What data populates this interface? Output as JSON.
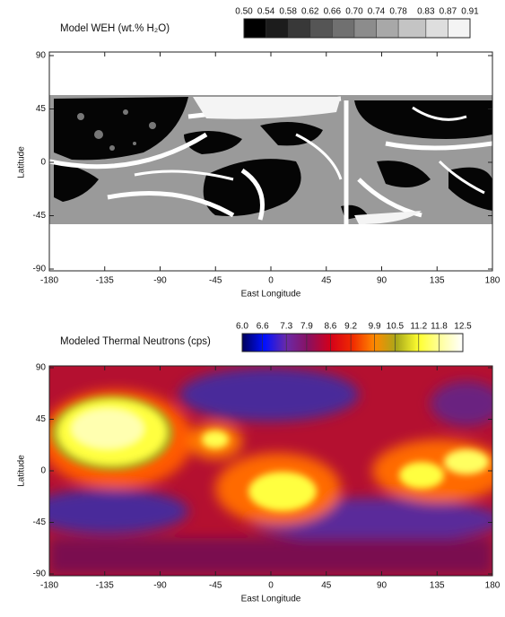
{
  "chart_data": [
    {
      "type": "map",
      "title": "Model WEH (wt.% H₂O)",
      "xlabel": "East Longitude",
      "ylabel": "Latitude",
      "xlim": [
        -180,
        180
      ],
      "xticks": [
        -180,
        -135,
        -90,
        -45,
        0,
        45,
        90,
        135,
        180
      ],
      "ylim": [
        -90,
        90
      ],
      "yticks": [
        -90,
        -45,
        0,
        45,
        90
      ],
      "colorbar": {
        "style": "discrete",
        "ticks": [
          {
            "value": 0.5,
            "label": "0.50"
          },
          0.54,
          0.58,
          0.62,
          0.66,
          {
            "value": 0.7,
            "label": "0.70"
          },
          0.74,
          0.78,
          0.83,
          0.87,
          0.91
        ],
        "colors": [
          "#000000",
          "#1c1c1c",
          "#383838",
          "#555555",
          "#707070",
          "#8c8c8c",
          "#a8a8a8",
          "#c4c4c4",
          "#dedede",
          "#f4f4f4"
        ]
      }
    },
    {
      "type": "map",
      "title": "Modeled Thermal Neutrons (cps)",
      "xlabel": "East Longitude",
      "ylabel": "Latitude",
      "xlim": [
        -180,
        180
      ],
      "xticks": [
        -180,
        -135,
        -90,
        -45,
        0,
        45,
        90,
        135,
        180
      ],
      "ylim": [
        -90,
        90
      ],
      "yticks": [
        -90,
        -45,
        0,
        45,
        90
      ],
      "colorbar": {
        "style": "gradient",
        "ticks": [
          {
            "value": 6,
            "label": "6.0"
          },
          6.6,
          7.3,
          7.9,
          8.6,
          9.2,
          9.9,
          10.5,
          11.2,
          11.8,
          12.5
        ],
        "colors": [
          "#00005a",
          "#0010ff",
          "#6a2aa8",
          "#8a1060",
          "#d4001a",
          "#f02a00",
          "#ff8a00",
          "#a8a81a",
          "#ffff30",
          "#ffffa0",
          "#ffffff"
        ]
      }
    }
  ]
}
